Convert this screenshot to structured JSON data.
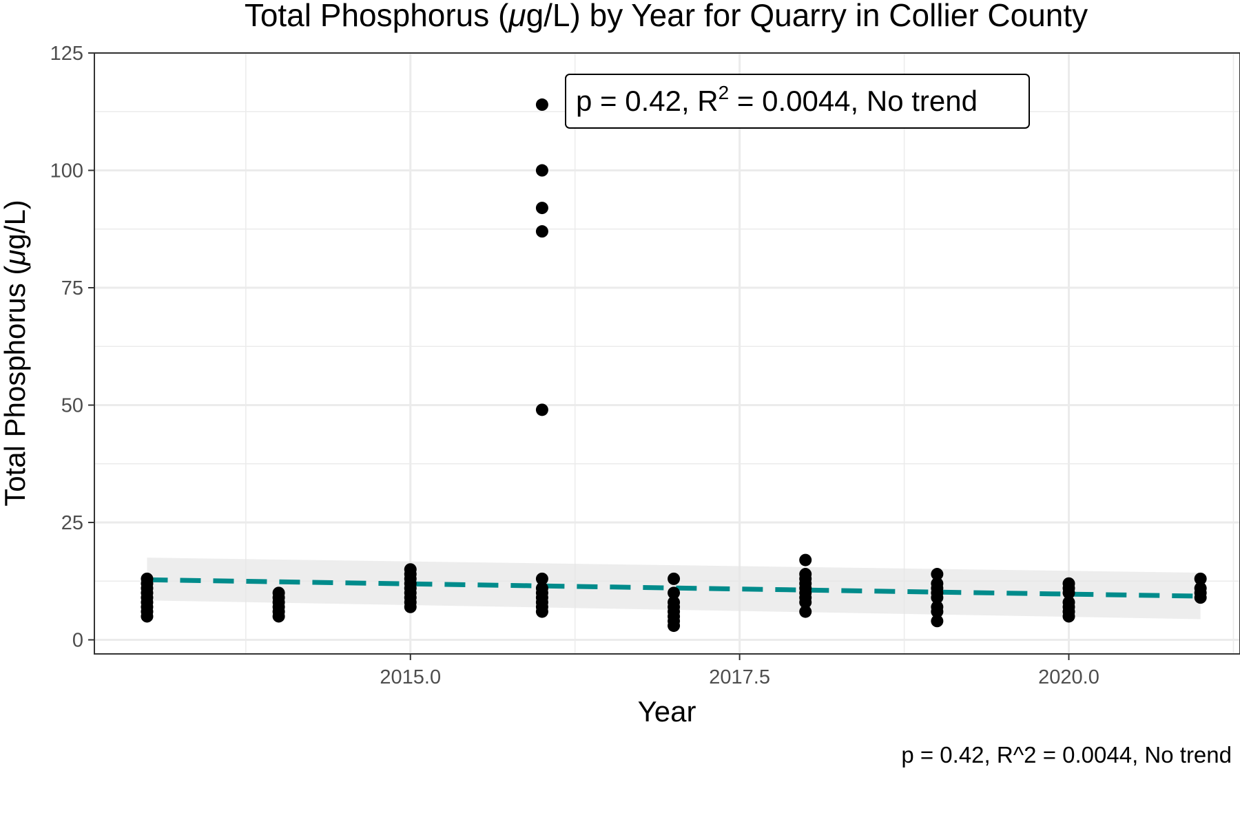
{
  "chart_data": {
    "type": "scatter",
    "title_main": "Total Phosphorus (",
    "title_mu": "μ",
    "title_rest": "g/L) by Year for Quarry in Collier County",
    "xlabel": "Year",
    "ylabel_main": "Total Phosphorus (",
    "ylabel_mu": "μ",
    "ylabel_rest": "g/L)",
    "xlim": [
      2012.6,
      2021.3
    ],
    "ylim": [
      -3,
      125
    ],
    "x_ticks": [
      2015.0,
      2017.5,
      2020.0
    ],
    "x_tick_labels": [
      "2015.0",
      "2017.5",
      "2020.0"
    ],
    "y_ticks": [
      0,
      25,
      50,
      75,
      100,
      125
    ],
    "y_tick_labels": [
      "0",
      "25",
      "50",
      "75",
      "100",
      "125"
    ],
    "grid": true,
    "points": [
      {
        "year": 2013,
        "values": [
          5,
          6,
          7,
          8,
          9,
          10,
          11,
          12,
          13
        ]
      },
      {
        "year": 2014,
        "values": [
          5,
          6,
          7,
          8,
          9,
          10
        ]
      },
      {
        "year": 2015,
        "values": [
          7,
          8,
          9,
          10,
          11,
          12,
          13,
          14,
          15
        ]
      },
      {
        "year": 2016,
        "values": [
          6,
          7,
          8,
          9,
          10,
          11,
          13,
          49,
          87,
          92,
          100,
          114
        ]
      },
      {
        "year": 2017,
        "values": [
          3,
          4,
          5,
          6,
          7,
          8,
          10,
          13
        ]
      },
      {
        "year": 2018,
        "values": [
          6,
          8,
          9,
          10,
          11,
          12,
          13,
          14,
          17
        ]
      },
      {
        "year": 2019,
        "values": [
          4,
          6,
          7,
          9,
          10,
          11,
          12,
          14
        ]
      },
      {
        "year": 2020,
        "values": [
          5,
          6,
          7,
          8,
          10,
          11,
          12
        ]
      },
      {
        "year": 2021,
        "values": [
          9,
          10,
          11,
          13
        ]
      }
    ],
    "trend_line": {
      "x": [
        2013,
        2021
      ],
      "y": [
        12.8,
        9.3
      ],
      "style": "dashed",
      "color": "#008b8b"
    },
    "confidence_band": {
      "x": [
        2013,
        2021
      ],
      "upper": [
        17.5,
        14.3
      ],
      "lower": [
        8.4,
        4.4
      ],
      "color": "#e6e6e6"
    },
    "annotation": {
      "prefix": "p = 0.42, R",
      "superscript": "2",
      "suffix": " = 0.0044, No trend",
      "position": "top-center"
    },
    "caption": "p = 0.42, R^2 = 0.0044, No trend"
  }
}
